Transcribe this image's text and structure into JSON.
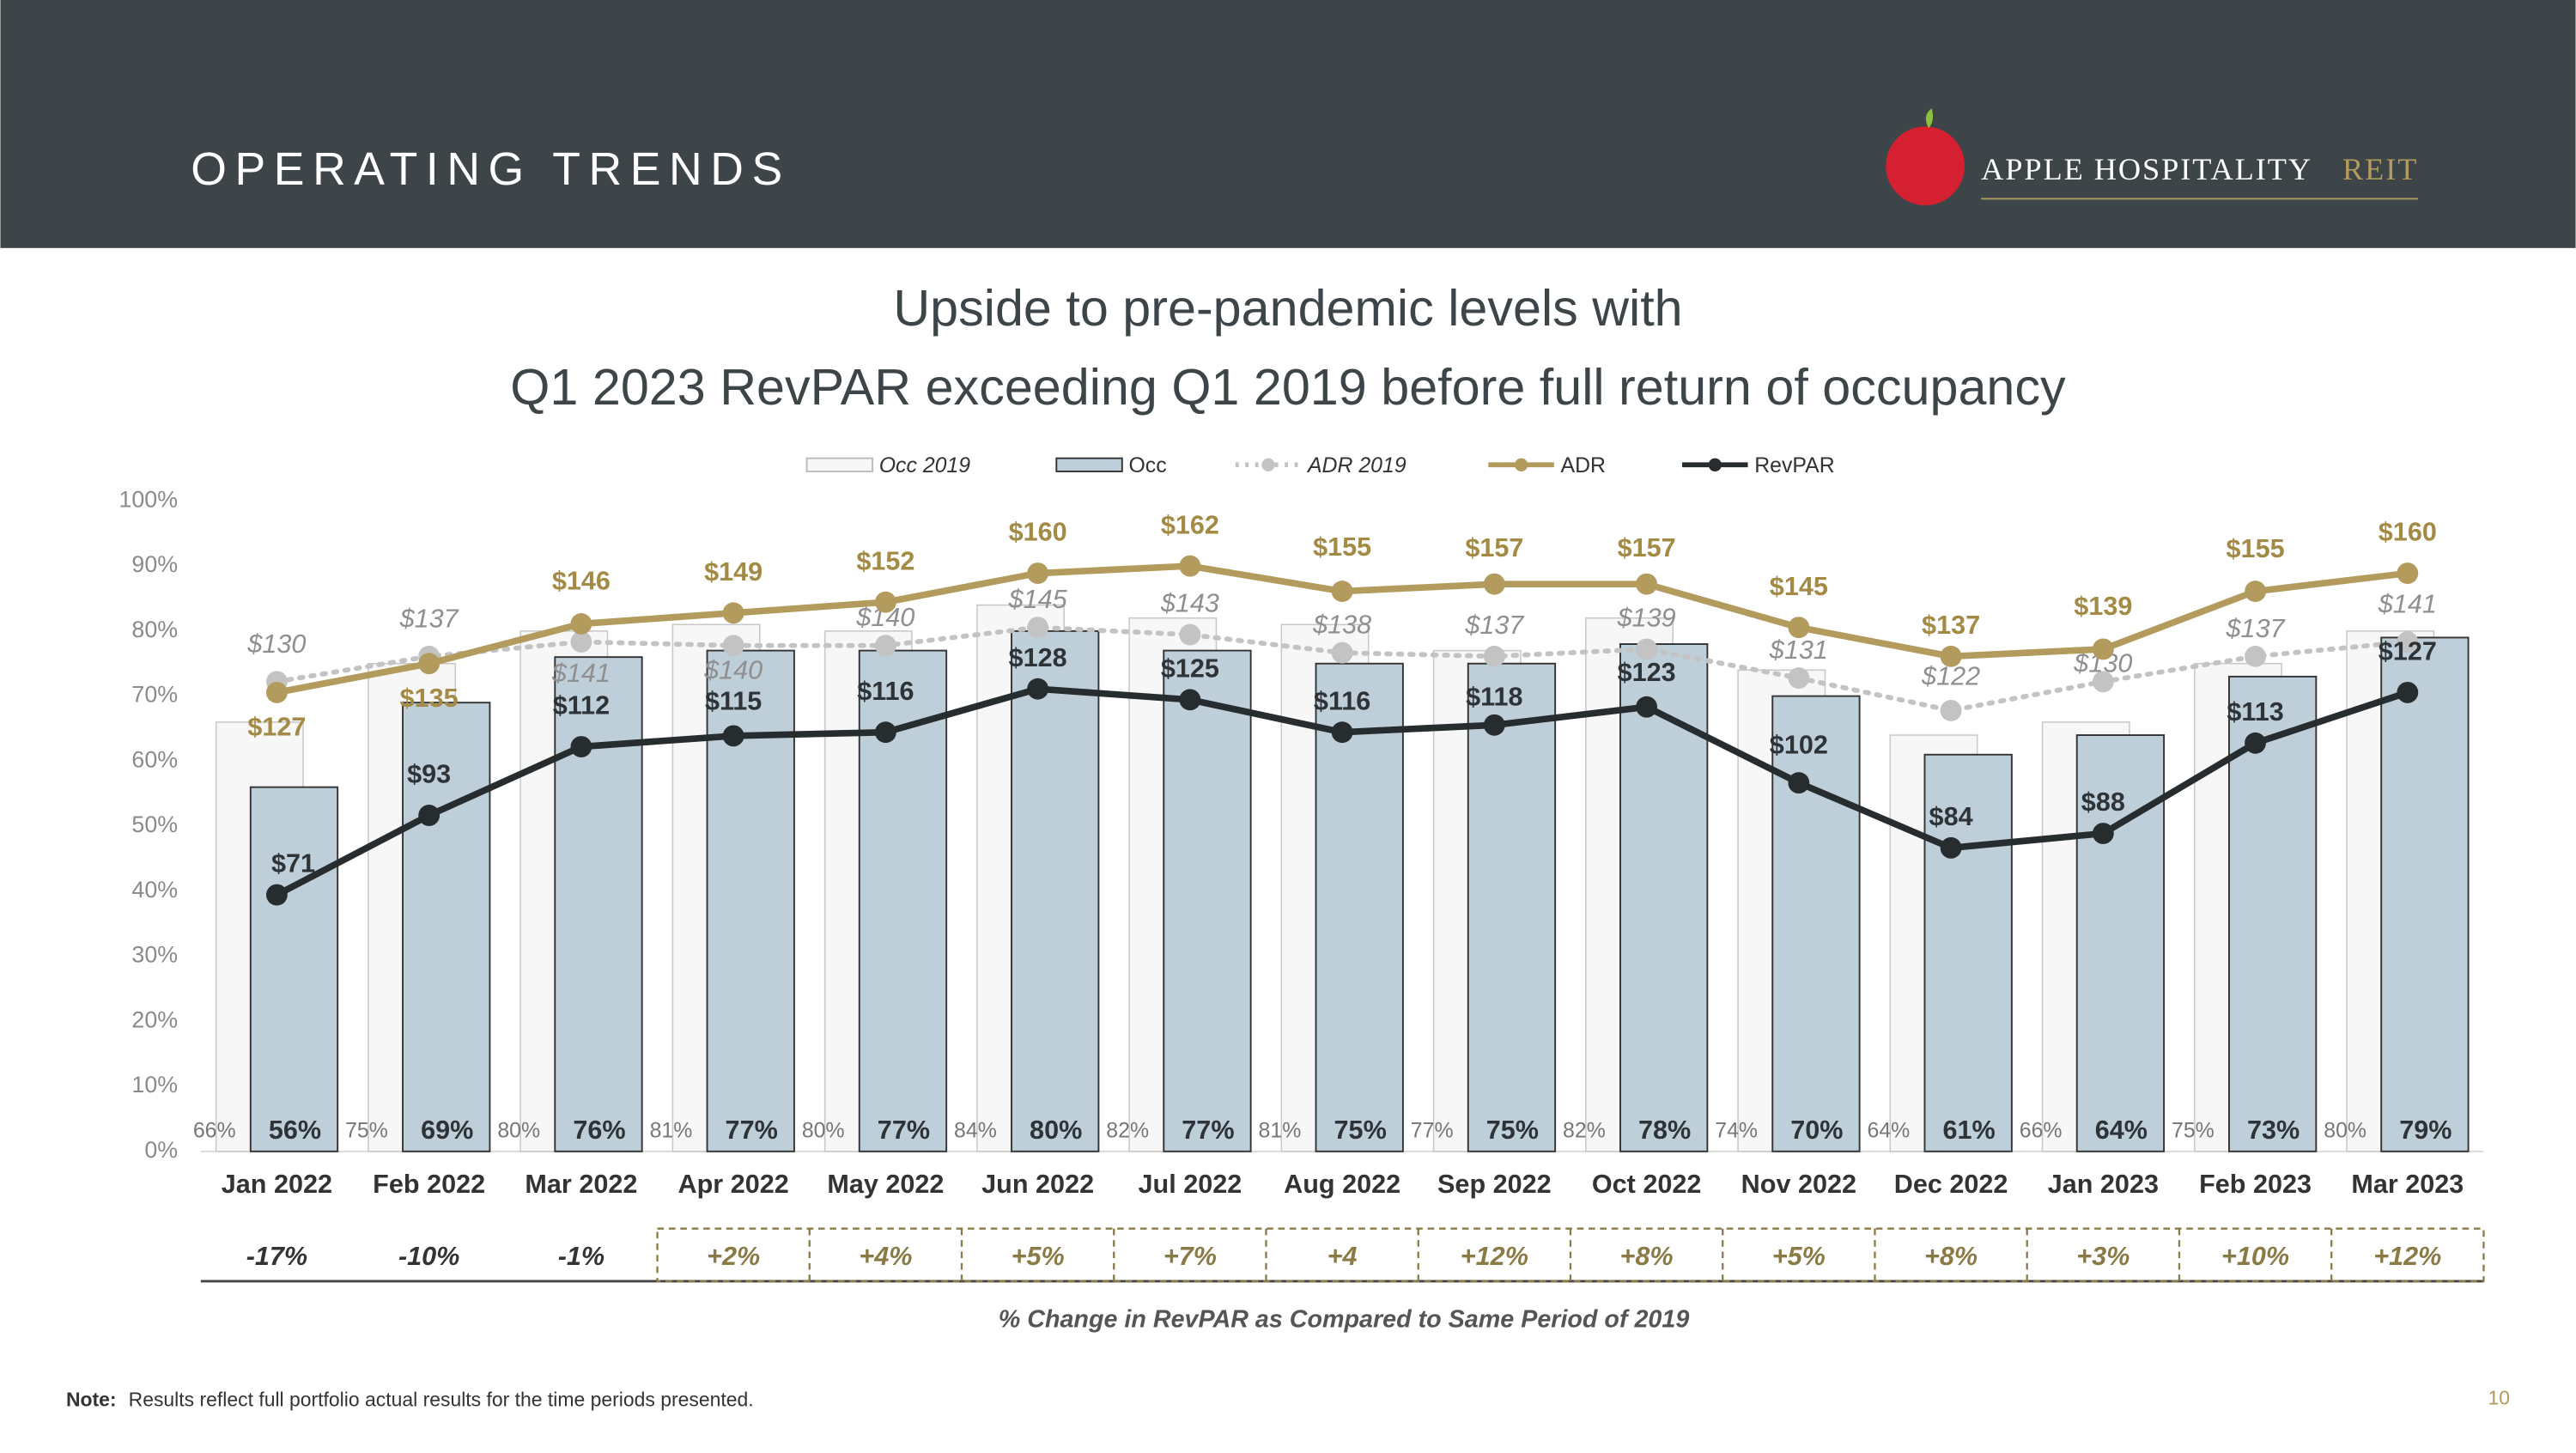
{
  "header": {
    "title": "OPERATING TRENDS",
    "logo_name": "APPLE HOSPITALITY",
    "logo_suffix": "REIT"
  },
  "chart_data": {
    "type": "combo",
    "title": [
      "Upside to pre-pandemic levels with",
      "Q1 2023 RevPAR exceeding Q1 2019 before full return of occupancy"
    ],
    "categories": [
      "Jan 2022",
      "Feb 2022",
      "Mar 2022",
      "Apr 2022",
      "May 2022",
      "Jun 2022",
      "Jul 2022",
      "Aug 2022",
      "Sep 2022",
      "Oct 2022",
      "Nov 2022",
      "Dec 2022",
      "Jan 2023",
      "Feb 2023",
      "Mar 2023"
    ],
    "ylim": [
      0,
      100
    ],
    "yticks": [
      {
        "value": 0,
        "label": "0%"
      },
      {
        "value": 10,
        "label": "10%"
      },
      {
        "value": 20,
        "label": "20%"
      },
      {
        "value": 30,
        "label": "30%"
      },
      {
        "value": 40,
        "label": "40%"
      },
      {
        "value": 50,
        "label": "50%"
      },
      {
        "value": 60,
        "label": "60%"
      },
      {
        "value": 70,
        "label": "70%"
      },
      {
        "value": 80,
        "label": "80%"
      },
      {
        "value": 90,
        "label": "90%"
      },
      {
        "value": 100,
        "label": "100%"
      }
    ],
    "y2lim": [
      0,
      180
    ],
    "series": [
      {
        "name": "Occ 2019",
        "type": "bar",
        "color": "#f6f7f6",
        "values": [
          66,
          75,
          80,
          81,
          80,
          84,
          82,
          81,
          77,
          82,
          74,
          64,
          66,
          75,
          80
        ],
        "value_labels": [
          "66%",
          "75%",
          "80%",
          "81%",
          "80%",
          "84%",
          "82%",
          "81%",
          "77%",
          "82%",
          "74%",
          "64%",
          "66%",
          "75%",
          "80%"
        ]
      },
      {
        "name": "Occ",
        "type": "bar",
        "color": "#bfcfd9",
        "values": [
          56,
          69,
          76,
          77,
          77,
          80,
          77,
          75,
          75,
          78,
          70,
          61,
          64,
          73,
          79
        ],
        "value_labels": [
          "56%",
          "69%",
          "76%",
          "77%",
          "77%",
          "80%",
          "77%",
          "75%",
          "75%",
          "78%",
          "70%",
          "61%",
          "64%",
          "73%",
          "79%"
        ]
      },
      {
        "name": "ADR 2019",
        "type": "line",
        "axis": "y2",
        "dashed": true,
        "color": "#c3c3c3",
        "values": [
          130,
          137,
          141,
          140,
          140,
          145,
          143,
          138,
          137,
          139,
          131,
          122,
          130,
          137,
          141
        ],
        "value_labels": [
          "$130",
          "$137",
          "$141",
          "$140",
          "$140",
          "$145",
          "$143",
          "$138",
          "$137",
          "$139",
          "$131",
          "$122",
          "$130",
          "$137",
          "$141"
        ]
      },
      {
        "name": "ADR",
        "type": "line",
        "axis": "y2",
        "color": "#b29b5c",
        "values": [
          127,
          135,
          146,
          149,
          152,
          160,
          162,
          155,
          157,
          157,
          145,
          137,
          139,
          155,
          160
        ],
        "value_labels": [
          "$127",
          "$135",
          "$146",
          "$149",
          "$152",
          "$160",
          "$162",
          "$155",
          "$157",
          "$157",
          "$145",
          "$137",
          "$139",
          "$155",
          "$160"
        ]
      },
      {
        "name": "RevPAR",
        "type": "line",
        "axis": "y2",
        "color": "#272c2f",
        "values": [
          71,
          93,
          112,
          115,
          116,
          128,
          125,
          116,
          118,
          123,
          102,
          84,
          88,
          113,
          127
        ],
        "value_labels": [
          "$71",
          "$93",
          "$112",
          "$115",
          "$116",
          "$128",
          "$125",
          "$116",
          "$118",
          "$123",
          "$102",
          "$84",
          "$88",
          "$113",
          "$127"
        ]
      }
    ],
    "change_labels": [
      "-17%",
      "-10%",
      "-1%",
      "+2%",
      "+4%",
      "+5%",
      "+7%",
      "+4",
      "+12%",
      "+8%",
      "+5%",
      "+8%",
      "+3%",
      "+10%",
      "+12%"
    ],
    "change_title": "% Change in RevPAR as Compared to Same Period of 2019"
  },
  "footer": {
    "note_label": "Note:",
    "note": "Results reflect full portfolio actual results for the time periods presented.",
    "page": "10"
  }
}
